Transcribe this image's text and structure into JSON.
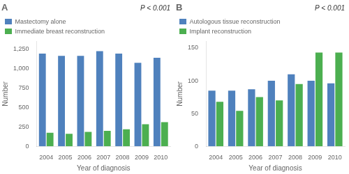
{
  "chart_data": [
    {
      "type": "bar",
      "title": "A",
      "categories": [
        "2004",
        "2005",
        "2006",
        "2007",
        "2008",
        "2009",
        "2010"
      ],
      "series": [
        {
          "name": "Mastectomy alone",
          "color": "#4F81BD",
          "values": [
            1195,
            1165,
            1165,
            1225,
            1195,
            1075,
            1140
          ]
        },
        {
          "name": "Immediate breast reconstruction",
          "color": "#4CAF50",
          "values": [
            175,
            160,
            185,
            200,
            220,
            285,
            310
          ]
        }
      ],
      "xlabel": "Year of diagnosis",
      "ylabel": "Number",
      "ylim": [
        0,
        1350
      ],
      "yticks": [
        0,
        250,
        500,
        750,
        {
          "value": 1000,
          "label": "1,000"
        },
        {
          "value": 1250,
          "label": "1,250"
        }
      ],
      "grid": false,
      "legend": "upper left",
      "annotations": [
        "P < 0.001"
      ]
    },
    {
      "type": "bar",
      "title": "B",
      "categories": [
        "2004",
        "2005",
        "2006",
        "2007",
        "2008",
        "2009",
        "2010"
      ],
      "series": [
        {
          "name": "Autologous tissue reconstruction",
          "color": "#4F81BD",
          "values": [
            85,
            85,
            87,
            100,
            110,
            100,
            96
          ]
        },
        {
          "name": "Implant reconstruction",
          "color": "#4CAF50",
          "values": [
            68,
            54,
            75,
            70,
            95,
            143,
            143
          ]
        }
      ],
      "xlabel": "Year of diagnosis",
      "ylabel": "Number",
      "ylim": [
        0,
        160
      ],
      "yticks": [
        0,
        50,
        100,
        150
      ],
      "grid": false,
      "legend": "upper left",
      "annotations": [
        "P < 0.001"
      ]
    }
  ]
}
